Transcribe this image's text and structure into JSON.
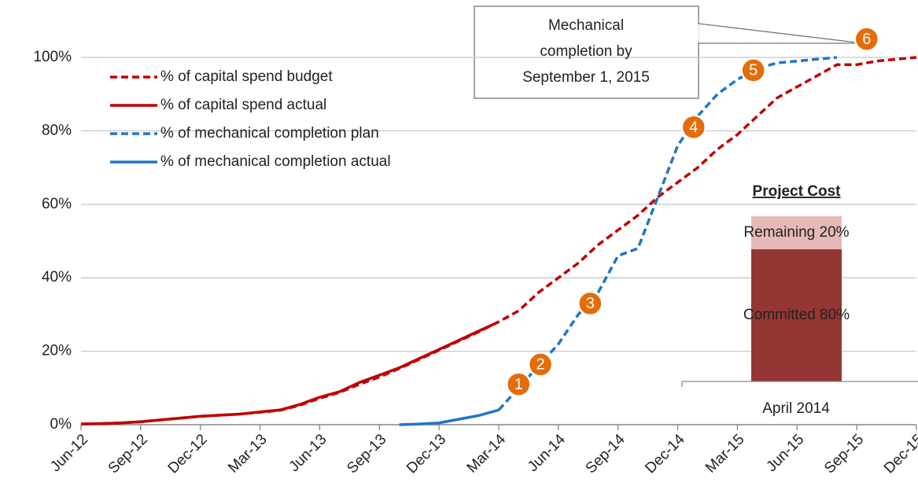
{
  "chart_data": [
    {
      "type": "line",
      "categories": [
        "Jun-12",
        null,
        null,
        "Sep-12",
        null,
        null,
        "Dec-12",
        null,
        null,
        "Mar-13",
        null,
        null,
        "Jun-13",
        null,
        null,
        "Sep-13",
        null,
        null,
        "Dec-13",
        null,
        null,
        "Mar-14",
        null,
        null,
        "Jun-14",
        null,
        null,
        "Sep-14",
        null,
        null,
        "Dec-14",
        null,
        null,
        "Mar-15",
        null,
        null,
        "Jun-15",
        null,
        null,
        "Sep-15",
        null,
        null,
        "Dec-15"
      ],
      "ylim": [
        0,
        100
      ],
      "yticks": [
        {
          "value": 0,
          "label": "0%"
        },
        {
          "value": 20,
          "label": "20%"
        },
        {
          "value": 40,
          "label": "40%"
        },
        {
          "value": 60,
          "label": "60%"
        },
        {
          "value": 80,
          "label": "80%"
        },
        {
          "value": 100,
          "label": "100%"
        }
      ],
      "grid": true,
      "legend": "upper left",
      "series": [
        {
          "name": "% of capital spend budget",
          "color": "#c00000",
          "dash": true,
          "values": [
            0.2,
            0.3,
            0.5,
            0.8,
            1.3,
            1.8,
            2.3,
            2.6,
            2.9,
            3.4,
            3.9,
            5.3,
            7.2,
            8.8,
            11,
            13,
            15.3,
            17.8,
            20.3,
            22.8,
            25.3,
            28,
            31,
            36,
            40,
            44,
            49,
            53,
            57,
            62,
            66,
            70,
            75,
            79,
            84,
            89,
            92,
            95,
            98,
            98,
            99,
            99.5,
            100
          ]
        },
        {
          "name": "% of capital spend actual",
          "color": "#c00000",
          "dash": false,
          "values": [
            0.2,
            0.3,
            0.5,
            0.8,
            1.3,
            1.8,
            2.3,
            2.6,
            2.9,
            3.5,
            4,
            5.5,
            7.5,
            9,
            11.5,
            13.5,
            15.5,
            18,
            20.5,
            23,
            25.5,
            28,
            null,
            null,
            null,
            null,
            null,
            null,
            null,
            null,
            null,
            null,
            null,
            null,
            null,
            null,
            null,
            null,
            null,
            null,
            null,
            null,
            null
          ]
        },
        {
          "name": "% of mechanical completion plan",
          "color": "#1f77c4",
          "dash": true,
          "values": [
            null,
            null,
            null,
            null,
            null,
            null,
            null,
            null,
            null,
            null,
            null,
            null,
            null,
            null,
            null,
            null,
            null,
            null,
            null,
            null,
            null,
            4,
            10,
            16,
            22,
            30,
            36,
            46,
            48,
            62,
            76,
            84,
            90,
            94,
            97,
            98.5,
            99,
            99.5,
            100,
            null,
            null,
            null,
            null
          ]
        },
        {
          "name": "% of mechanical completion actual",
          "color": "#1f77c4",
          "dash": false,
          "values": [
            null,
            null,
            null,
            null,
            null,
            null,
            null,
            null,
            null,
            null,
            null,
            null,
            null,
            null,
            null,
            null,
            0,
            0.2,
            0.5,
            1.5,
            2.5,
            4,
            null,
            null,
            null,
            null,
            null,
            null,
            null,
            null,
            null,
            null,
            null,
            null,
            null,
            null,
            null,
            null,
            null,
            null,
            null,
            null,
            null
          ]
        }
      ],
      "markers": [
        {
          "label": "1",
          "x": 22,
          "y": 11
        },
        {
          "label": "2",
          "x": 23.1,
          "y": 16.4
        },
        {
          "label": "3",
          "x": 25.6,
          "y": 33
        },
        {
          "label": "4",
          "x": 30.8,
          "y": 81
        },
        {
          "label": "5",
          "x": 33.8,
          "y": 96.5
        },
        {
          "label": "6",
          "x": 39.5,
          "y": 105
        }
      ],
      "callout": [
        "Mechanical",
        "completion by",
        "September 1, 2015"
      ]
    },
    {
      "type": "bar",
      "title": "Project Cost",
      "categories": [
        "April 2014"
      ],
      "ylim": [
        0,
        100
      ],
      "series": [
        {
          "color": "#943634",
          "values": [
            80
          ],
          "value_labels": [
            "Committed 80%"
          ]
        },
        {
          "color": "#e6b9b8",
          "values": [
            20
          ],
          "value_labels": [
            "Remaining 20%"
          ]
        }
      ]
    }
  ]
}
